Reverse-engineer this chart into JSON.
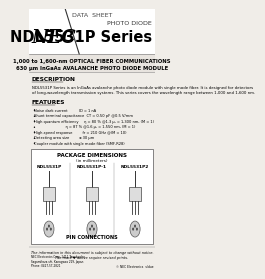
{
  "bg_color": "#f0ede8",
  "header_line_color": "#333333",
  "nec_logo": "NEC",
  "data_sheet_label": "DATA  SHEET",
  "product_type": "PHOTO DIODE",
  "product_name": "NDL5531P Series",
  "subtitle1": "1,000 to 1,600-nm OPTICAL FIBER COMMUNICATIONS",
  "subtitle2": "630 μm InGaAs AVALANCHE PHOTO DIODE MODULE",
  "section_description": "DESCRIPTION",
  "desc_text1": "NDL5531P Series is an InGaAs avalanche photo diode module with single mode fiber. It is designed for detectors",
  "desc_text2": "of long-wavelength transmission systems. This series covers the wavelength range between 1,000 and 1,600 nm.",
  "section_features": "FEATURES",
  "features": [
    "Noise dark current          ID = 1 nA",
    "Shunt terminal capacitance  CT = 0.50 pF @0.5 V/mm",
    "High quantum efficiency     η = 80 % @1.3 μ, = 1,300 nm, (M = 1)",
    "                            η = 87 % @1.6 μ, = 1,550 nm, (M = 1)",
    "High-speed response         fr = 210 GHz @(M = 10)",
    "Detecting area size         ⌀ 30 μm",
    "Coupler module with single mode fiber (SMF-R28)"
  ],
  "package_label": "PACKAGE DIMENSIONS",
  "package_unit": "(in millimeters)",
  "models": [
    "NDL5531P",
    "NDL5531P-1",
    "NDL5531P2"
  ],
  "pin_connections_label": "PIN CONNECTIONS",
  "footer1": "The information in this document is subject to change without notice.",
  "footer2": "The mark ♥ above require revised prints.",
  "copyright": "© NEC Electronics  s/due"
}
